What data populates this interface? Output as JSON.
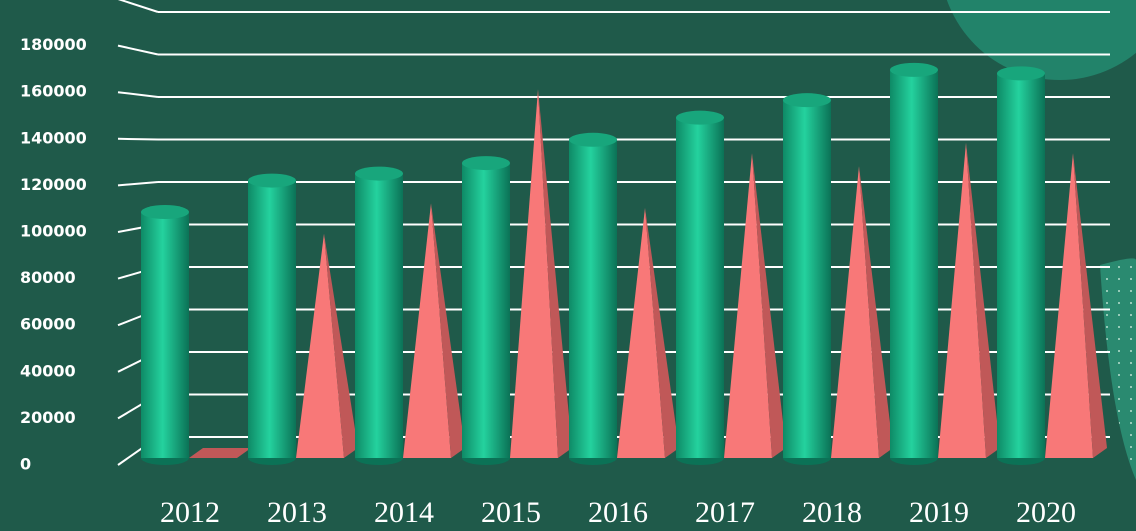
{
  "chart_data": {
    "type": "bar3d",
    "categories": [
      "2012",
      "2013",
      "2014",
      "2015",
      "2016",
      "2017",
      "2018",
      "2019",
      "2020"
    ],
    "series": [
      {
        "color": "#1fc08f",
        "shape": "cylinder",
        "values": [
          106000,
          119500,
          122500,
          127000,
          137000,
          146500,
          154000,
          167000,
          165500
        ]
      },
      {
        "color": "#f87878",
        "shape": "pyramid",
        "values": [
          0,
          98000,
          111000,
          160000,
          109000,
          132500,
          127000,
          137000,
          132500
        ]
      }
    ],
    "ylim": [
      0,
      200000
    ],
    "yticks": [
      0,
      20000,
      40000,
      60000,
      80000,
      100000,
      120000,
      140000,
      160000,
      180000
    ],
    "grid": true
  }
}
